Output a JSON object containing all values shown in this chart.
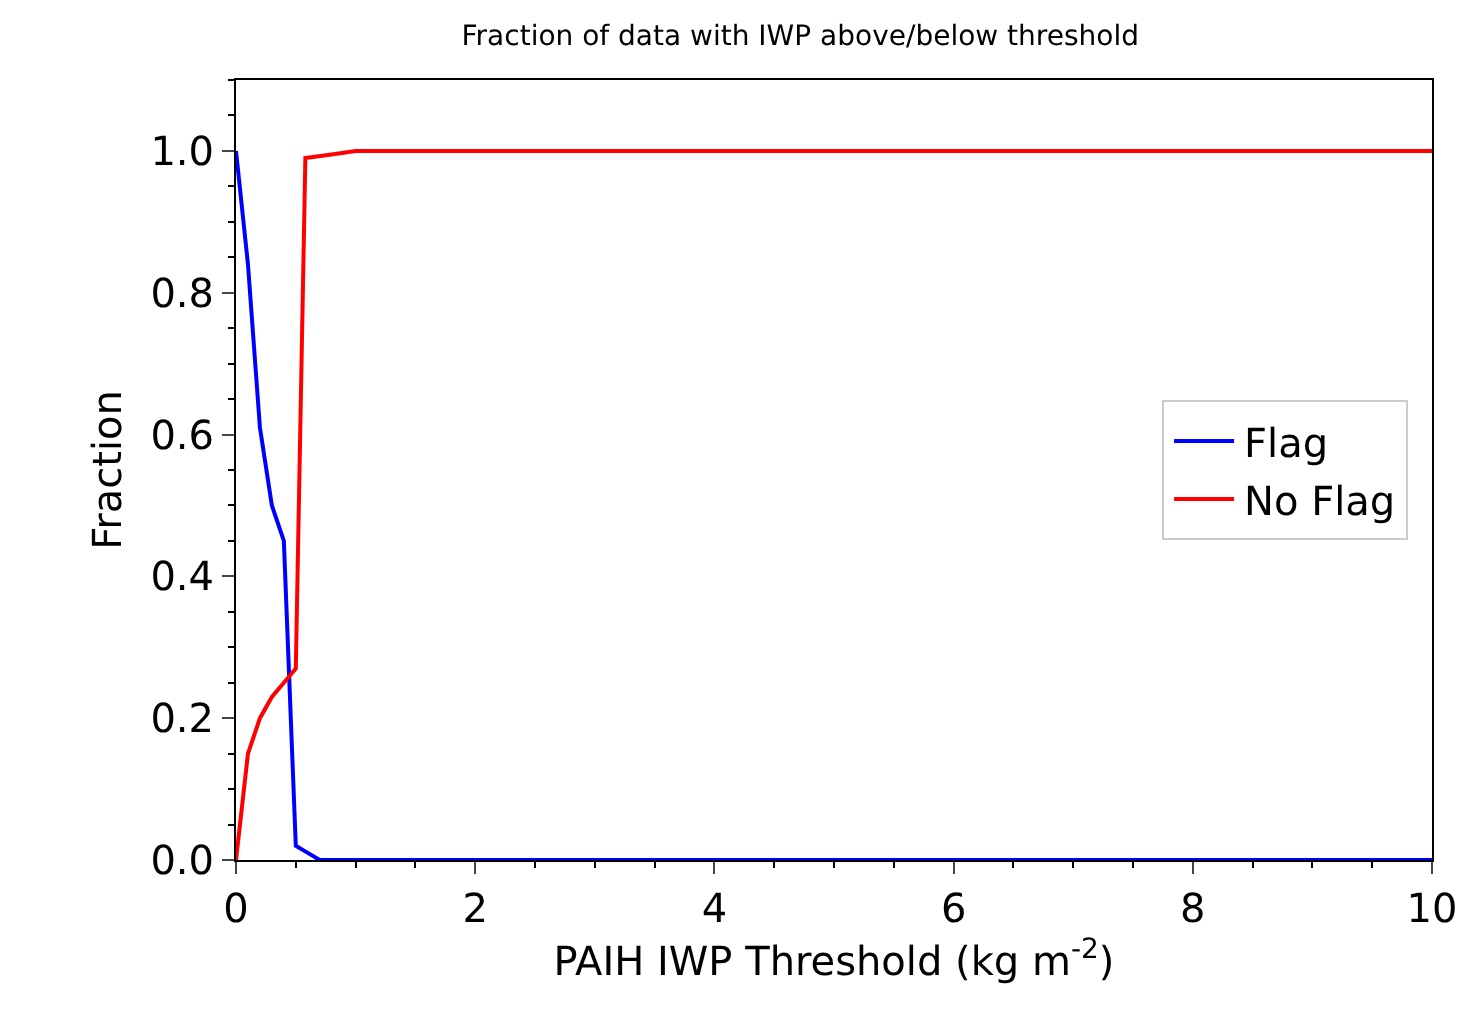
{
  "chart_data": {
    "type": "line",
    "title": "Fraction of data with IWP above/below threshold",
    "xlabel": "PAIH IWP Threshold (kg m$^{-2}$)",
    "ylabel": "Fraction",
    "series": [
      {
        "name": "Flag",
        "color": "#0000ff",
        "x": [
          0,
          0.1,
          0.2,
          0.3,
          0.4,
          0.5,
          0.6,
          0.7,
          0.8,
          1,
          2,
          4,
          6,
          8,
          10
        ],
        "values": [
          1.0,
          0.84,
          0.61,
          0.5,
          0.45,
          0.02,
          0.01,
          0.0,
          0.0,
          0.0,
          0.0,
          0.0,
          0.0,
          0.0,
          0.0
        ]
      },
      {
        "name": "No Flag",
        "color": "#ff0000",
        "x": [
          0,
          0.1,
          0.2,
          0.3,
          0.4,
          0.5,
          0.58,
          0.8,
          1,
          1.5,
          2,
          4,
          6,
          8,
          10
        ],
        "values": [
          0.0,
          0.15,
          0.2,
          0.23,
          0.25,
          0.27,
          0.99,
          0.995,
          1.0,
          1.0,
          1.0,
          1.0,
          1.0,
          1.0,
          1.0
        ]
      }
    ],
    "xlim": [
      0,
      10
    ],
    "xticks": [
      0,
      2,
      4,
      6,
      8,
      10
    ],
    "ylim": [
      0,
      1.1
    ],
    "yticks": [
      {
        "value": 0,
        "label": "0.0"
      },
      {
        "value": 0.2,
        "label": "0.2"
      },
      {
        "value": 0.4,
        "label": "0.4"
      },
      {
        "value": 0.6,
        "label": "0.6"
      },
      {
        "value": 0.8,
        "label": "0.8"
      },
      {
        "value": 1.0,
        "label": "1.0"
      }
    ],
    "legend": "right",
    "marker": "none",
    "line_style": "solid"
  }
}
